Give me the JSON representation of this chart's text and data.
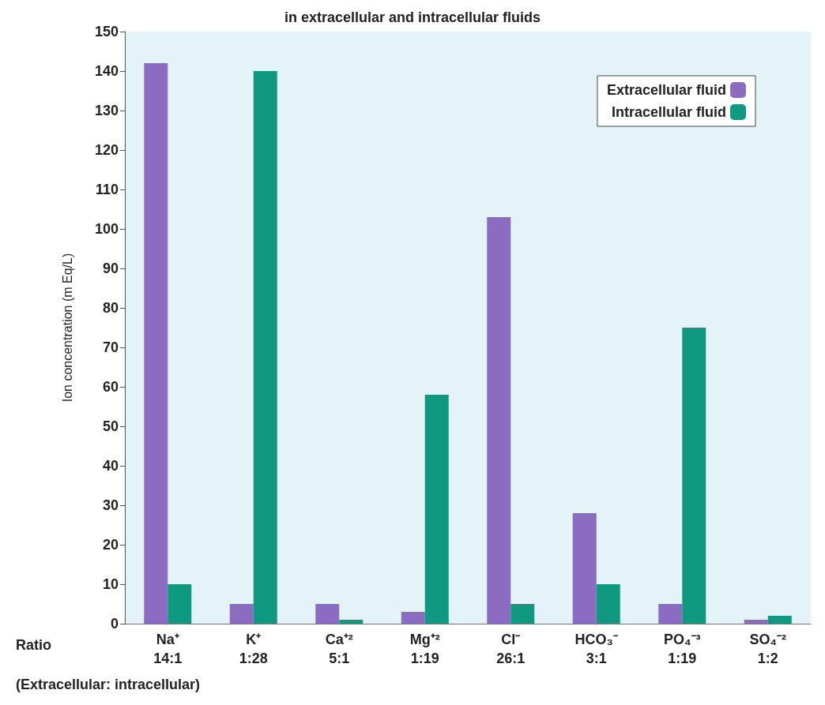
{
  "chart_data": {
    "type": "bar",
    "title": "in extracellular and intracellular fluids",
    "ylabel": "Ion concentration (m Eq/L)",
    "categories": [
      "Na⁺\n14:1",
      "K⁺\n1:28",
      "Ca⁺²\n5:1",
      "Mg⁺²\n1:19",
      "Cl⁻\n26:1",
      "HCO₃⁻\n3:1",
      "PO₄⁻³\n1:19",
      "SO₄⁻²\n1:2"
    ],
    "series": [
      {
        "name": "Extracellular fluid",
        "color": "#8b6cc0",
        "values": [
          142,
          5,
          5,
          3,
          103,
          28,
          5,
          1
        ]
      },
      {
        "name": "Intracellular fluid",
        "color": "#0e9980",
        "values": [
          10,
          140,
          1,
          58,
          5,
          10,
          75,
          2
        ]
      }
    ],
    "ylim": [
      0,
      150
    ],
    "yticks": [
      0,
      10,
      20,
      30,
      40,
      50,
      60,
      70,
      80,
      90,
      100,
      110,
      120,
      130,
      140,
      150
    ],
    "grid": false,
    "legend": "top right",
    "annotations": [
      "Ratio",
      "(Extracellular: intracellular)"
    ]
  }
}
